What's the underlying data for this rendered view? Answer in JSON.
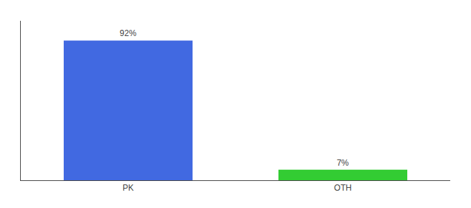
{
  "chart_data": {
    "type": "bar",
    "categories": [
      "PK",
      "OTH"
    ],
    "values": [
      92,
      7
    ],
    "value_labels": [
      "92%",
      "7%"
    ],
    "colors": [
      "#4169E1",
      "#33CC33"
    ],
    "ylim": [
      0,
      105
    ],
    "data_labels": true,
    "tick_labels": "x",
    "grid": false
  }
}
